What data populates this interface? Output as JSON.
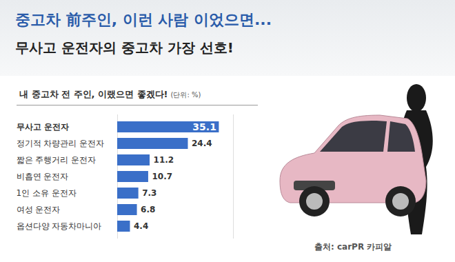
{
  "chart_data": {
    "type": "bar",
    "orientation": "horizontal",
    "title": "중고차 前주인, 이런 사람 이었으면...",
    "subtitle": "무사고 운전자의 중고차 가장 선호!",
    "chart_title": "내 중고차 전 주인, 이랬으면 좋겠다!",
    "unit": "(단위: %)",
    "source": "출처: carPR 카피알",
    "categories": [
      "무사고 운전자",
      "정기적 차량관리 운전자",
      "짧은 주행거리 운전자",
      "비흡연 운전자",
      "1인 소유 운전자",
      "여성 운전자",
      "옵션다양 자동차마니아"
    ],
    "values": [
      35.1,
      24.4,
      11.2,
      10.7,
      7.3,
      6.8,
      4.4
    ],
    "color": "#3a6fc8",
    "xlim": [
      0,
      40
    ],
    "xticks": [],
    "data_labels": true,
    "tick_labels": "y",
    "grid": false
  }
}
